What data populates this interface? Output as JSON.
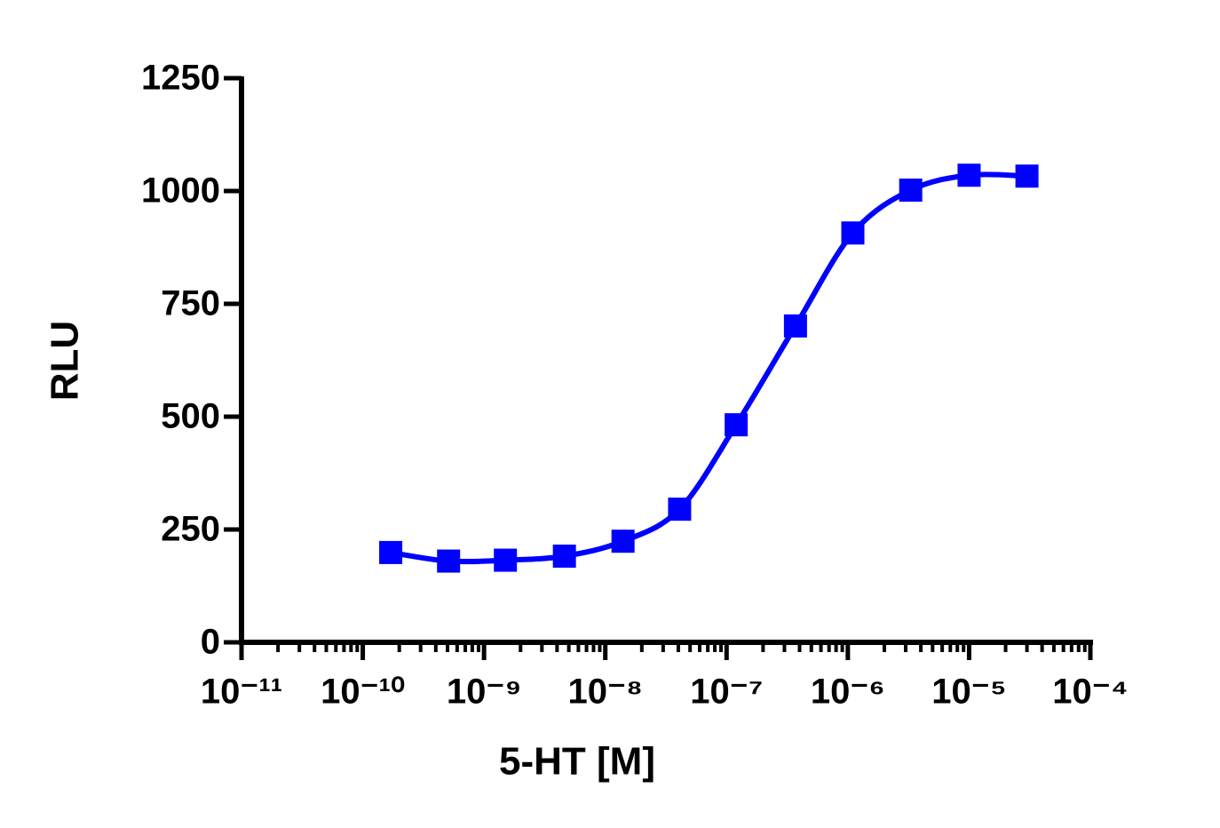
{
  "chart_data": {
    "type": "line",
    "log_x": true,
    "markers": "square",
    "smooth": true,
    "x_label": "5-HT [M]",
    "y_label": "RLU",
    "x": [
      1.7e-10,
      5.1e-10,
      1.5e-09,
      4.6e-09,
      1.4e-08,
      4.1e-08,
      1.2e-07,
      3.7e-07,
      1.1e-06,
      3.3e-06,
      1e-05,
      3e-05
    ],
    "series": [
      {
        "color": "#0000ff",
        "values": [
          199,
          180,
          182,
          191,
          224,
          295,
          482,
          701,
          907,
          1002,
          1035,
          1033
        ]
      }
    ],
    "xlim": [
      1e-11,
      0.0001
    ],
    "xticks": [
      {
        "value": 1e-11,
        "label": "10⁻¹¹"
      },
      {
        "value": 1e-10,
        "label": "10⁻¹⁰"
      },
      {
        "value": 1e-09,
        "label": "10⁻⁹"
      },
      {
        "value": 1e-08,
        "label": "10⁻⁸"
      },
      {
        "value": 1e-07,
        "label": "10⁻⁷"
      },
      {
        "value": 1e-06,
        "label": "10⁻⁶"
      },
      {
        "value": 1e-05,
        "label": "10⁻⁵"
      },
      {
        "value": 0.0001,
        "label": "10⁻⁴"
      }
    ],
    "ylim": [
      0,
      1250
    ],
    "yticks": [
      0,
      250,
      500,
      750,
      1000,
      1250
    ],
    "grid": false
  }
}
